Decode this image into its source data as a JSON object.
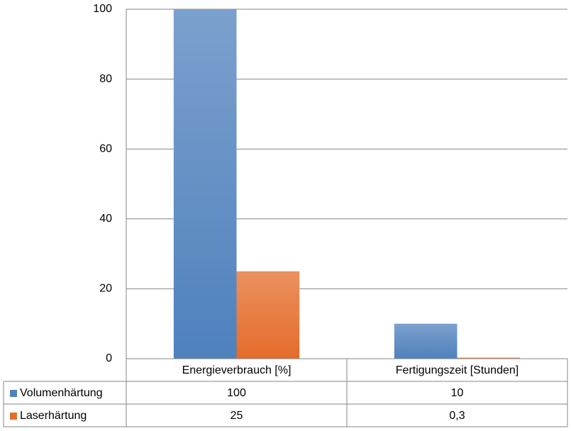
{
  "chart_data": {
    "type": "bar",
    "categories": [
      "Energieverbrauch [%]",
      "Fertigungszeit [Stunden]"
    ],
    "series": [
      {
        "name": "Volumenhärtung",
        "color": "#4f81bd",
        "values": [
          100,
          10
        ]
      },
      {
        "name": "Laserhärtung",
        "color": "#e46c2a",
        "values": [
          25,
          0.3
        ],
        "value_labels": [
          "25",
          "0,3"
        ]
      }
    ],
    "ylim": [
      0,
      100
    ],
    "yticks": [
      0,
      20,
      40,
      60,
      80,
      100
    ],
    "grid": true,
    "data_table": true
  }
}
